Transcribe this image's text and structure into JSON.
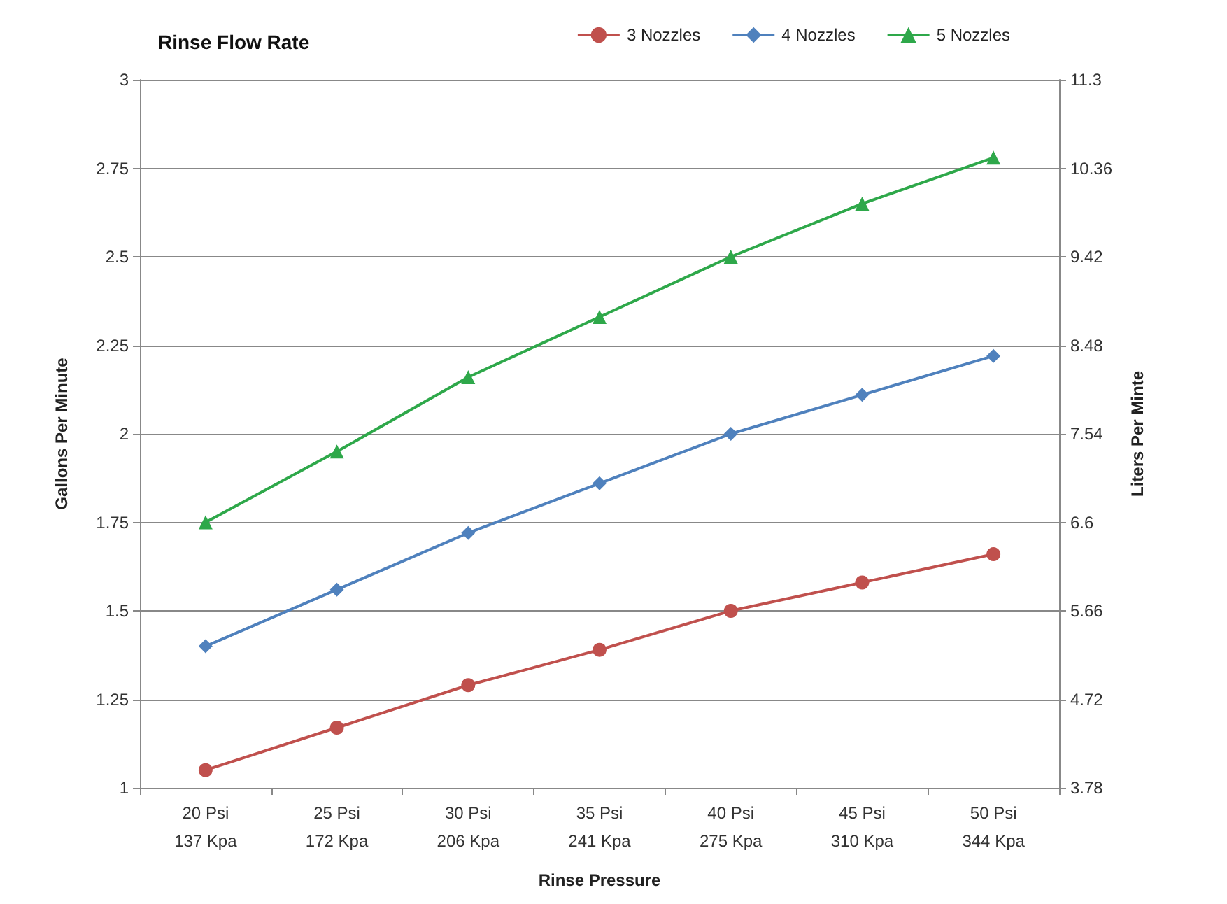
{
  "chart_data": {
    "type": "line",
    "title": "Rinse Flow Rate",
    "xlabel": "Rinse Pressure",
    "ylabel": "Gallons Per Minute",
    "y2label": "Liters Per Minte",
    "categories": [
      "20 Psi\n137 Kpa",
      "25 Psi\n172 Kpa",
      "30 Psi\n206 Kpa",
      "35 Psi\n241 Kpa",
      "40 Psi\n275 Kpa",
      "45 Psi\n310 Kpa",
      "50 Psi\n344 Kpa"
    ],
    "series": [
      {
        "name": "3 Nozzles",
        "color": "#c0504d",
        "marker": "circle",
        "values": [
          1.05,
          1.17,
          1.29,
          1.39,
          1.5,
          1.58,
          1.66
        ]
      },
      {
        "name": "4 Nozzles",
        "color": "#4f81bd",
        "marker": "diamond",
        "values": [
          1.4,
          1.56,
          1.72,
          1.86,
          2.0,
          2.11,
          2.22
        ]
      },
      {
        "name": "5 Nozzles",
        "color": "#2ea84a",
        "marker": "triangle",
        "values": [
          1.75,
          1.95,
          2.16,
          2.33,
          2.5,
          2.65,
          2.78
        ]
      }
    ],
    "ylim": [
      1,
      3
    ],
    "yticks": [
      1,
      1.25,
      1.5,
      1.75,
      2,
      2.25,
      2.5,
      2.75,
      3
    ],
    "y2lim": [
      3.78,
      11.3
    ],
    "y2ticks": [
      3.78,
      4.72,
      5.66,
      6.6,
      7.54,
      8.48,
      9.42,
      10.36,
      11.3
    ],
    "grid": "y",
    "legend": "top right"
  }
}
